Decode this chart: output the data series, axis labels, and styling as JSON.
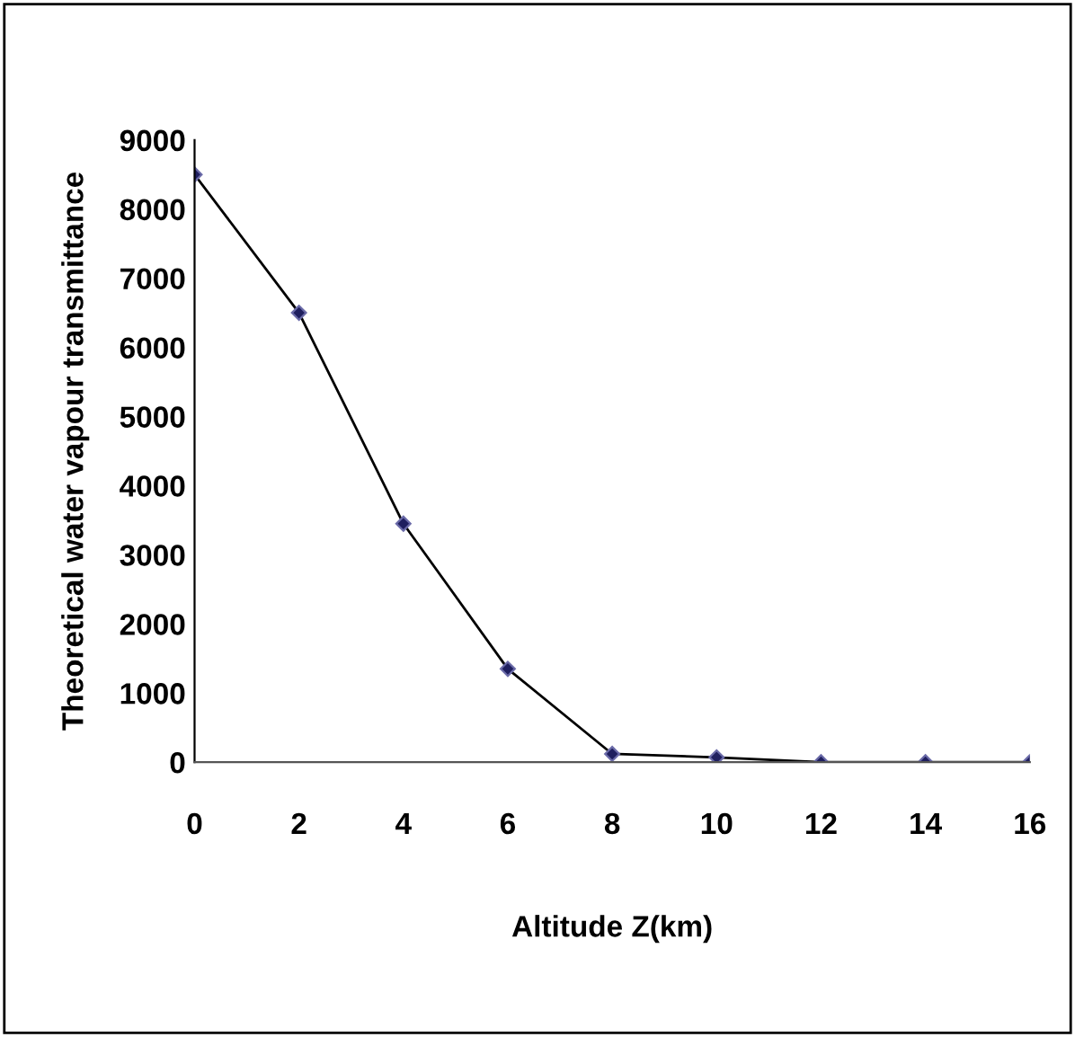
{
  "chart_data": {
    "type": "line",
    "xlabel": "Altitude Z(km)",
    "ylabel": "Theoretical water vapour transmittance",
    "x": [
      0,
      2,
      4,
      6,
      8,
      10,
      12,
      14,
      16
    ],
    "series": [
      {
        "color": "#000000",
        "values": [
          8500,
          6500,
          3450,
          1350,
          120,
          70,
          0,
          0,
          0
        ]
      }
    ],
    "xlim": [
      0,
      16
    ],
    "xticks": [
      0,
      2,
      4,
      6,
      8,
      10,
      12,
      14,
      16
    ],
    "ylim": [
      0,
      9000
    ],
    "yticks": [
      0,
      1000,
      2000,
      3000,
      4000,
      5000,
      6000,
      7000,
      8000,
      9000
    ],
    "marker": "diamond",
    "grid": false
  }
}
